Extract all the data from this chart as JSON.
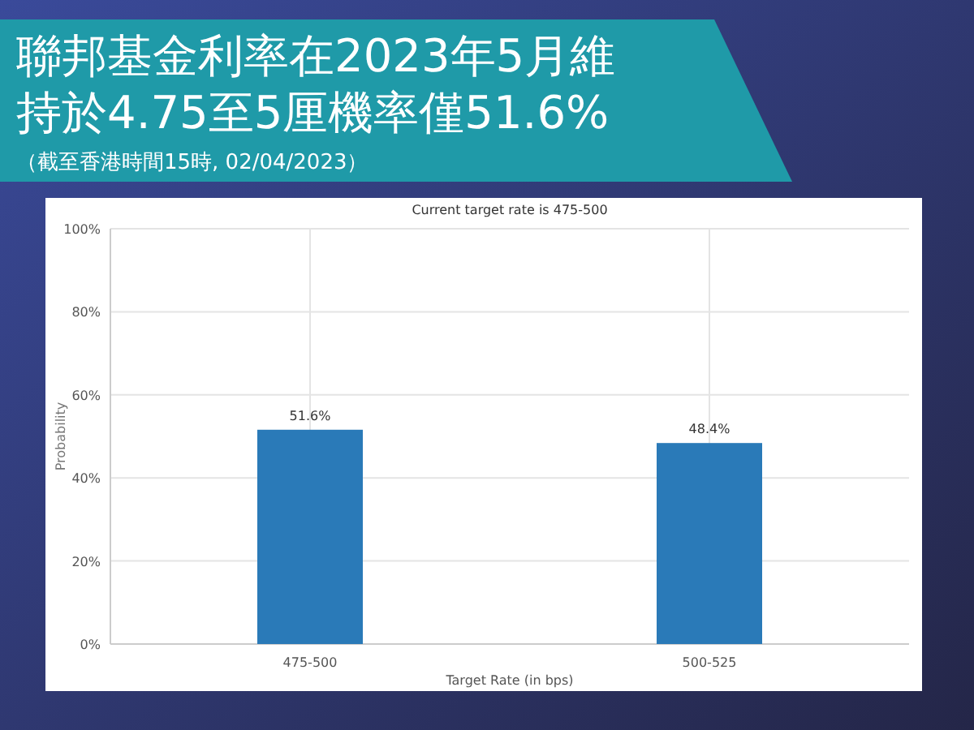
{
  "chart_data": {
    "type": "bar",
    "title": "聯邦基金利率在2023年5月維持於4.75至5厘機率僅51.6%",
    "subtitle": "Current target rate is 475-500",
    "xlabel": "Target Rate (in bps)",
    "ylabel": "Probability",
    "annotations": [
      "（截至香港時間15時, 02/04/2023）"
    ],
    "categories": [
      "475-500",
      "500-525"
    ],
    "values": [
      51.6,
      48.4
    ],
    "value_labels": [
      "51.6%",
      "48.4%"
    ],
    "color": "#2a7ab8",
    "ylim": [
      0,
      100
    ],
    "yticks": [
      {
        "value": 0,
        "label": "0%"
      },
      {
        "value": 20,
        "label": "20%"
      },
      {
        "value": 40,
        "label": "40%"
      },
      {
        "value": 60,
        "label": "60%"
      },
      {
        "value": 80,
        "label": "80%"
      },
      {
        "value": 100,
        "label": "100%"
      }
    ],
    "grid": true
  }
}
